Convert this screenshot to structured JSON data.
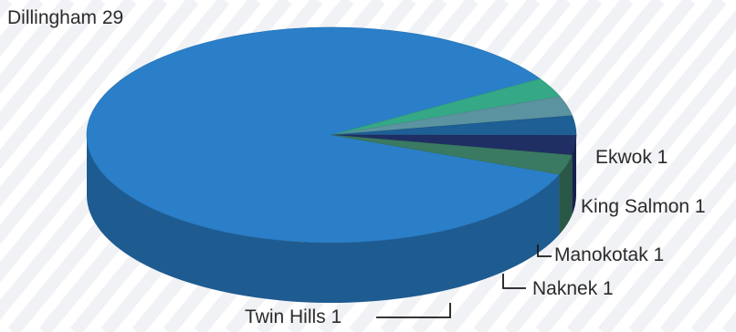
{
  "chart_data": {
    "type": "pie",
    "title": "",
    "slices": [
      {
        "label": "Dillingham",
        "value": 29,
        "color": "#2a7fc8",
        "text": "Dillingham 29"
      },
      {
        "label": "Ekwok",
        "value": 1,
        "color": "#35a886",
        "text": "Ekwok 1"
      },
      {
        "label": "King Salmon",
        "value": 1,
        "color": "#5b93a0",
        "text": "King Salmon 1"
      },
      {
        "label": "Manokotak",
        "value": 1,
        "color": "#1e5f95",
        "text": "Manokotak 1"
      },
      {
        "label": "Naknek",
        "value": 1,
        "color": "#1f2f63",
        "text": "Naknek 1"
      },
      {
        "label": "Twin Hills",
        "value": 1,
        "color": "#3b7a62",
        "text": "Twin Hills 1"
      }
    ],
    "style": "3d-pie",
    "legend": "none",
    "grid": false
  }
}
